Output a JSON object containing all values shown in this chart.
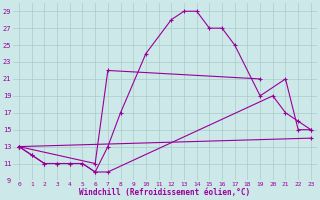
{
  "xlabel": "Windchill (Refroidissement éolien,°C)",
  "background_color": "#cce8e8",
  "line_color": "#990099",
  "grid_color": "#aacccc",
  "xlim": [
    -0.5,
    23.5
  ],
  "ylim": [
    9,
    30
  ],
  "xticks": [
    0,
    1,
    2,
    3,
    4,
    5,
    6,
    7,
    8,
    9,
    10,
    11,
    12,
    13,
    14,
    15,
    16,
    17,
    18,
    19,
    20,
    21,
    22,
    23
  ],
  "yticks": [
    9,
    11,
    13,
    15,
    17,
    19,
    21,
    23,
    25,
    27,
    29
  ],
  "line1_x": [
    0,
    1,
    2,
    3,
    4,
    5,
    6,
    7,
    8,
    10,
    12,
    13,
    14,
    15,
    16,
    17,
    19,
    21,
    22,
    23
  ],
  "line1_y": [
    13,
    12,
    11,
    11,
    11,
    11,
    10,
    13,
    17,
    24,
    28,
    29,
    29,
    27,
    27,
    25,
    19,
    21,
    15,
    15
  ],
  "line2_x": [
    0,
    1,
    2,
    3,
    4,
    5,
    6,
    7,
    20,
    21,
    22,
    23
  ],
  "line2_y": [
    13,
    12,
    11,
    11,
    11,
    11,
    10,
    10,
    19,
    17,
    16,
    15
  ],
  "line3_x": [
    0,
    6,
    7,
    19
  ],
  "line3_y": [
    13,
    11,
    22,
    21
  ],
  "line4_x": [
    0,
    23
  ],
  "line4_y": [
    13,
    14
  ]
}
